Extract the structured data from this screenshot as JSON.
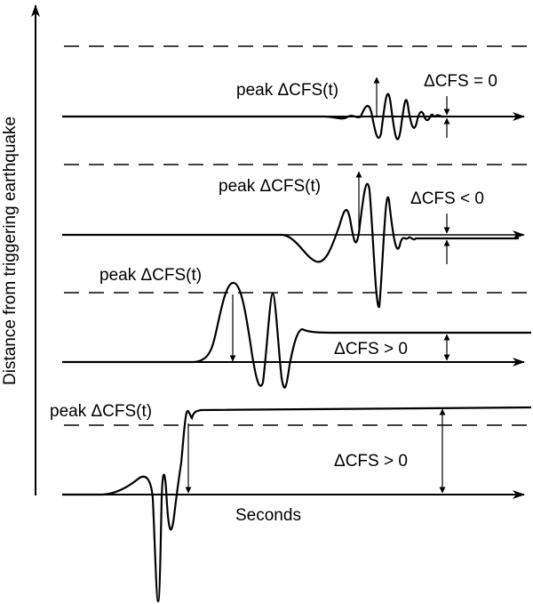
{
  "y_axis_label": "Distance from triggering earthquake",
  "x_axis_label": "Seconds",
  "colors": {
    "ink": "#000000",
    "background": "#ffffff"
  },
  "traces": [
    {
      "id": "trace-1",
      "peak_label": "peak ΔCFS(t)",
      "static_label": "ΔCFS = 0"
    },
    {
      "id": "trace-2",
      "peak_label": "peak ΔCFS(t)",
      "static_label": "ΔCFS < 0"
    },
    {
      "id": "trace-3",
      "peak_label": "peak ΔCFS(t)",
      "static_label": "ΔCFS > 0"
    },
    {
      "id": "trace-4",
      "peak_label": "peak ΔCFS(t)",
      "static_label": "ΔCFS > 0"
    }
  ]
}
